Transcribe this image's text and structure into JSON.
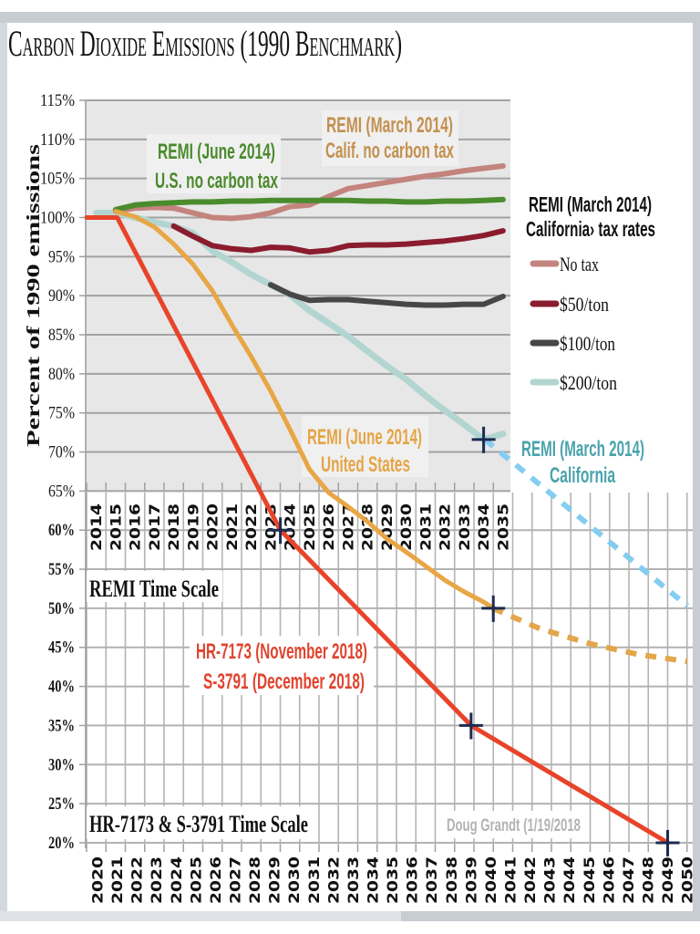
{
  "chart_data": {
    "type": "line",
    "title": "Carbon Dioxide Emissions (1990 Benchmark)",
    "ylabel": "Percent of 1990 emissions",
    "ylim": [
      20,
      115
    ],
    "grid": true,
    "y_axis": {
      "ticks": [
        "115%",
        "110%",
        "105%",
        "100%",
        "95%",
        "90%",
        "85%",
        "80%",
        "75%",
        "70%",
        "65%",
        "60%",
        "55%",
        "50%",
        "45%",
        "40%",
        "35%",
        "30%",
        "25%",
        "20%"
      ]
    },
    "x_axes": [
      {
        "name": "remi",
        "label": "REMI Time Scale",
        "range": [
          2014,
          2035
        ],
        "tick_labels": [
          "2014",
          "2015",
          "2016",
          "2017",
          "2018",
          "2019",
          "2020",
          "2021",
          "2022",
          "2023",
          "2024",
          "2025",
          "2026",
          "2027",
          "2028",
          "2029",
          "2030",
          "2031",
          "2032",
          "2033",
          "2034",
          "2035"
        ]
      },
      {
        "name": "bill",
        "label": "HR-7173 & S-3791 Time Scale",
        "range": [
          2020,
          2050
        ],
        "tick_labels": [
          "2020",
          "2021",
          "2022",
          "2023",
          "2024",
          "2025",
          "2026",
          "2027",
          "2028",
          "2029",
          "2030",
          "2031",
          "2032",
          "2033",
          "2034",
          "2035",
          "2036",
          "2037",
          "2038",
          "2039",
          "2040",
          "2041",
          "2042",
          "2043",
          "2044",
          "2045",
          "2046",
          "2047",
          "2048",
          "2049",
          "2050"
        ]
      }
    ],
    "legend": {
      "placement": "right",
      "title_lines": [
        "REMI (March 2014)",
        "California› tax rates"
      ],
      "entries": [
        {
          "label": "No tax",
          "color": "#c4847e"
        },
        {
          "label": "$50/ton",
          "color": "#8a1c2e"
        },
        {
          "label": "$100/ton",
          "color": "#474747"
        },
        {
          "label": "$200/ton",
          "color": "#b2d5d1"
        }
      ]
    },
    "series": [
      {
        "id": "ca-200-ton",
        "name": "REMI (March 2014) California $200/ton",
        "scale": "remi",
        "style": "solid",
        "weight": "wide",
        "color": "#b2d5d1",
        "points": [
          [
            2014,
            100.6
          ],
          [
            2015,
            100.6
          ],
          [
            2016,
            100.0
          ],
          [
            2017,
            99.4
          ],
          [
            2018,
            98.9
          ],
          [
            2019,
            98.0
          ],
          [
            2020,
            95.7
          ],
          [
            2021,
            94.3
          ],
          [
            2022,
            92.7
          ],
          [
            2023,
            91.4
          ],
          [
            2024,
            90.1
          ],
          [
            2025,
            88.1
          ],
          [
            2026,
            86.5
          ],
          [
            2027,
            84.8
          ],
          [
            2028,
            82.9
          ],
          [
            2029,
            81.0
          ],
          [
            2030,
            79.3
          ],
          [
            2031,
            77.2
          ],
          [
            2032,
            75.3
          ],
          [
            2033,
            73.5
          ],
          [
            2034,
            71.6
          ],
          [
            2035,
            72.3
          ]
        ]
      },
      {
        "id": "ca-100-ton",
        "name": "REMI (March 2014) California $100/ton",
        "scale": "remi",
        "style": "solid",
        "weight": "normal",
        "color": "#474747",
        "points": [
          [
            2023,
            91.4
          ],
          [
            2024,
            90.2
          ],
          [
            2025,
            89.4
          ],
          [
            2026,
            89.5
          ],
          [
            2027,
            89.5
          ],
          [
            2028,
            89.3
          ],
          [
            2029,
            89.1
          ],
          [
            2030,
            88.9
          ],
          [
            2031,
            88.8
          ],
          [
            2032,
            88.8
          ],
          [
            2033,
            88.9
          ],
          [
            2034,
            88.9
          ],
          [
            2035,
            89.9
          ]
        ]
      },
      {
        "id": "ca-50-ton",
        "name": "REMI (March 2014) California $50/ton",
        "scale": "remi",
        "style": "solid",
        "weight": "normal",
        "color": "#8a1c2e",
        "points": [
          [
            2018,
            98.9
          ],
          [
            2019,
            97.6
          ],
          [
            2020,
            96.4
          ],
          [
            2021,
            96.0
          ],
          [
            2022,
            95.8
          ],
          [
            2023,
            96.2
          ],
          [
            2024,
            96.1
          ],
          [
            2025,
            95.6
          ],
          [
            2026,
            95.8
          ],
          [
            2027,
            96.4
          ],
          [
            2028,
            96.5
          ],
          [
            2029,
            96.5
          ],
          [
            2030,
            96.6
          ],
          [
            2031,
            96.8
          ],
          [
            2032,
            97.0
          ],
          [
            2033,
            97.3
          ],
          [
            2034,
            97.7
          ],
          [
            2035,
            98.3
          ]
        ]
      },
      {
        "id": "ca-no-tax",
        "name": "REMI (March 2014) Calif. no carbon tax",
        "scale": "remi",
        "style": "solid",
        "weight": "normal",
        "color": "#c4847e",
        "points": [
          [
            2015,
            100.8
          ],
          [
            2016,
            101.2
          ],
          [
            2017,
            101.3
          ],
          [
            2018,
            101.2
          ],
          [
            2019,
            100.6
          ],
          [
            2020,
            100.0
          ],
          [
            2021,
            99.9
          ],
          [
            2022,
            100.1
          ],
          [
            2023,
            100.6
          ],
          [
            2024,
            101.4
          ],
          [
            2025,
            101.6
          ],
          [
            2026,
            102.7
          ],
          [
            2027,
            103.7
          ],
          [
            2028,
            104.1
          ],
          [
            2029,
            104.5
          ],
          [
            2030,
            104.9
          ],
          [
            2031,
            105.3
          ],
          [
            2032,
            105.6
          ],
          [
            2033,
            106.0
          ],
          [
            2034,
            106.3
          ],
          [
            2035,
            106.6
          ]
        ]
      },
      {
        "id": "us-no-tax",
        "name": "REMI (June 2014) U.S. no carbon tax",
        "scale": "remi",
        "style": "solid",
        "weight": "normal",
        "color": "#4a8c2c",
        "points": [
          [
            2015,
            101.0
          ],
          [
            2016,
            101.6
          ],
          [
            2017,
            101.8
          ],
          [
            2018,
            101.9
          ],
          [
            2019,
            102.0
          ],
          [
            2020,
            102.0
          ],
          [
            2021,
            102.1
          ],
          [
            2022,
            102.1
          ],
          [
            2023,
            102.2
          ],
          [
            2024,
            102.2
          ],
          [
            2025,
            102.2
          ],
          [
            2026,
            102.2
          ],
          [
            2027,
            102.2
          ],
          [
            2028,
            102.1
          ],
          [
            2029,
            102.1
          ],
          [
            2030,
            102.0
          ],
          [
            2031,
            102.0
          ],
          [
            2032,
            102.1
          ],
          [
            2033,
            102.1
          ],
          [
            2034,
            102.2
          ],
          [
            2035,
            102.3
          ]
        ]
      },
      {
        "id": "us-remi",
        "name": "REMI (June 2014) United States",
        "scale": "remi",
        "style": "solid",
        "weight": "thin",
        "color": "#e8a644",
        "points": [
          [
            2015,
            100.8
          ],
          [
            2016,
            100.1
          ],
          [
            2017,
            98.8
          ],
          [
            2018,
            96.6
          ],
          [
            2019,
            94.0
          ],
          [
            2020,
            90.6
          ],
          [
            2021,
            86.3
          ],
          [
            2022,
            82.2
          ],
          [
            2023,
            77.8
          ],
          [
            2024,
            72.9
          ],
          [
            2025,
            67.8
          ],
          [
            2026,
            64.8
          ],
          [
            2027,
            63.0
          ],
          [
            2028,
            61.1
          ],
          [
            2029,
            58.9
          ],
          [
            2030,
            57.2
          ],
          [
            2031,
            55.4
          ],
          [
            2032,
            53.6
          ],
          [
            2033,
            52.1
          ],
          [
            2034,
            50.8
          ],
          [
            2034.5,
            50.0
          ]
        ]
      },
      {
        "id": "ca-extrapolation",
        "name": "REMI (March 2014) California extrapolation",
        "scale": "bill",
        "style": "dashed",
        "weight": "normal",
        "color": "#84cdf1",
        "points": [
          [
            2039.7,
            71.6
          ],
          [
            2050,
            50.3
          ]
        ]
      },
      {
        "id": "us-extrapolation",
        "name": "REMI (June 2014) United States extrapolation",
        "scale": "bill",
        "style": "dashed",
        "weight": "normal",
        "color": "#e3a64a",
        "points": [
          [
            2040.1,
            50.0
          ],
          [
            2042.5,
            47.4
          ],
          [
            2045,
            45.5
          ],
          [
            2047.5,
            44.1
          ],
          [
            2050,
            43.2
          ]
        ]
      },
      {
        "id": "hr7173-s3791",
        "name": "HR-7173 / S-3791",
        "scale": "bill",
        "style": "solid",
        "weight": "thin",
        "color": "#e8442a",
        "points": [
          [
            2019.45,
            100
          ],
          [
            2021,
            100
          ],
          [
            2029.3,
            60
          ],
          [
            2039,
            35
          ],
          [
            2049,
            20
          ]
        ]
      }
    ],
    "markers": [
      {
        "scale": "bill",
        "x": 2029.3,
        "y": 60
      },
      {
        "scale": "bill",
        "x": 2039,
        "y": 35
      },
      {
        "scale": "bill",
        "x": 2049,
        "y": 20
      },
      {
        "scale": "remi",
        "x": 2034.5,
        "y": 50
      },
      {
        "scale": "remi",
        "x": 2034,
        "y": 71.6
      }
    ],
    "annotations": [
      {
        "id": "us-no-tax",
        "lines": [
          "REMI (June 2014)",
          "U.S. no carbon tax"
        ],
        "color": "#4a8a2c"
      },
      {
        "id": "calif-no-tax",
        "lines": [
          "REMI (March 2014)",
          "Calif. no carbon tax"
        ],
        "color": "#c3904f"
      },
      {
        "id": "us-remi",
        "lines": [
          "REMI (June 2014)",
          "United States"
        ],
        "color": "#e5a545"
      },
      {
        "id": "ca-remi",
        "lines": [
          "REMI (March 2014)",
          "California"
        ],
        "color": "#4aa3ac"
      },
      {
        "id": "bill",
        "lines": [
          "HR-7173 (November 2018)",
          "S-3791 (December 2018)"
        ],
        "color": "#e0442e"
      },
      {
        "id": "credit",
        "lines": [
          "Doug Grandt (1/19/2018"
        ],
        "color": "#b3b3b3"
      }
    ]
  }
}
